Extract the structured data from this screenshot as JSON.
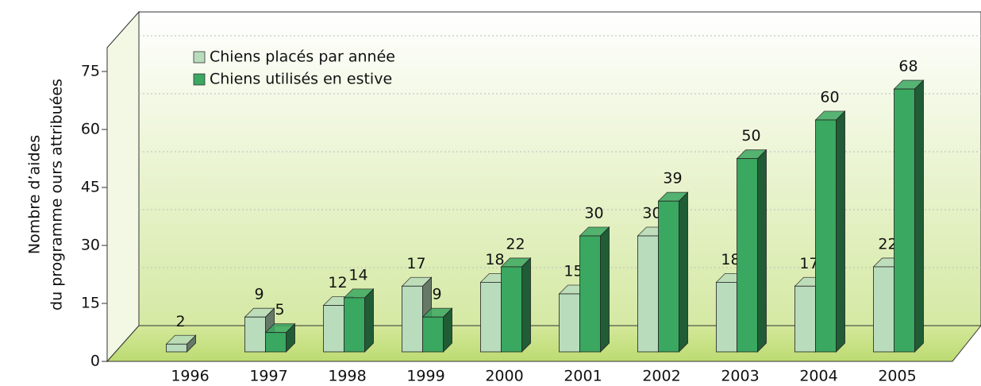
{
  "chart_data": {
    "type": "bar3d",
    "ylabel": [
      "Nombre d’aides",
      "du programme ours attribuées"
    ],
    "categories": [
      "1996",
      "1997",
      "1998",
      "1999",
      "2000",
      "2001",
      "2002",
      "2003",
      "2004",
      "2005"
    ],
    "series": [
      {
        "name": "Chiens placés par année",
        "color": "#b9dcbc",
        "values": [
          2,
          9,
          12,
          17,
          18,
          15,
          30,
          18,
          17,
          22
        ]
      },
      {
        "name": "Chiens utilisés en estive",
        "color": "#3aa860",
        "values": [
          null,
          5,
          14,
          9,
          22,
          30,
          39,
          50,
          60,
          68
        ]
      }
    ],
    "ylim": [
      0,
      75
    ],
    "yticks": [
      0,
      15,
      30,
      45,
      60,
      75
    ],
    "grid": true
  }
}
